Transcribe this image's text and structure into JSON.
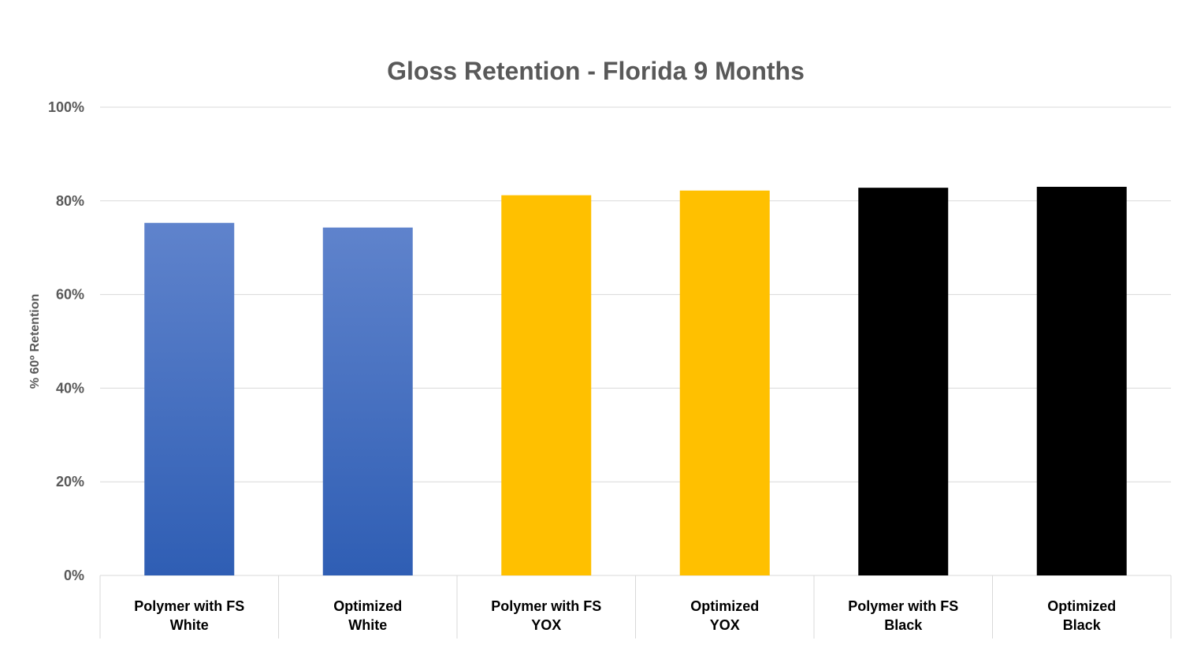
{
  "chart_data": {
    "type": "bar",
    "title": "Gloss Retention - Florida 9 Months",
    "xlabel": "",
    "ylabel": "% 60º Retention",
    "ylim": [
      0,
      1
    ],
    "yticks": [
      "0%",
      "20%",
      "40%",
      "60%",
      "80%",
      "100%"
    ],
    "categories": [
      [
        "Polymer with FS",
        "White"
      ],
      [
        "Optimized",
        "White"
      ],
      [
        "Polymer with FS",
        "YOX"
      ],
      [
        "Optimized",
        "YOX"
      ],
      [
        "Polymer with FS",
        "Black"
      ],
      [
        "Optimized",
        "Black"
      ]
    ],
    "values": [
      0.753,
      0.743,
      0.812,
      0.822,
      0.828,
      0.83
    ],
    "colors": [
      "#4472c4",
      "#4472c4",
      "#ffc000",
      "#ffc000",
      "#000000",
      "#000000"
    ],
    "grid": true,
    "legend": "none"
  }
}
